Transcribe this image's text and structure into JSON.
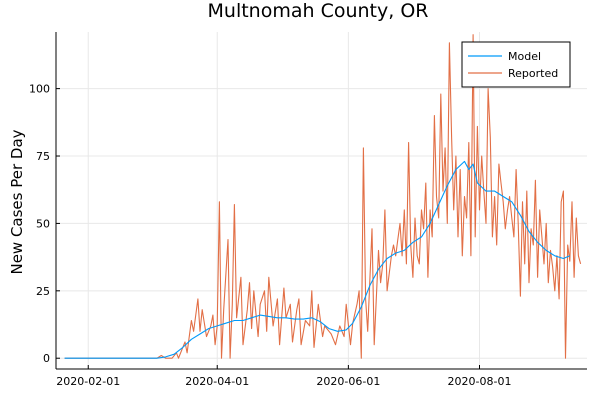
{
  "chart_data": {
    "type": "line",
    "title": "Multnomah County, OR",
    "xlabel": "",
    "ylabel": "New Cases Per Day",
    "x_ticks": [
      "2020-02-01",
      "2020-04-01",
      "2020-06-01",
      "2020-08-01"
    ],
    "y_ticks": [
      0,
      25,
      50,
      75,
      100
    ],
    "xlim": [
      "2020-01-17",
      "2020-09-20"
    ],
    "ylim": [
      -4,
      121
    ],
    "grid": true,
    "legend_position": "top-right",
    "series": [
      {
        "name": "Model",
        "color": "#009AFA",
        "points": [
          [
            "2020-01-21",
            0
          ],
          [
            "2020-03-04",
            0
          ],
          [
            "2020-03-08",
            0.5
          ],
          [
            "2020-03-12",
            1.5
          ],
          [
            "2020-03-16",
            4
          ],
          [
            "2020-03-20",
            7
          ],
          [
            "2020-03-24",
            9
          ],
          [
            "2020-03-28",
            11
          ],
          [
            "2020-04-01",
            12
          ],
          [
            "2020-04-05",
            13
          ],
          [
            "2020-04-09",
            14
          ],
          [
            "2020-04-13",
            14
          ],
          [
            "2020-04-17",
            15
          ],
          [
            "2020-04-21",
            16
          ],
          [
            "2020-04-25",
            15.5
          ],
          [
            "2020-04-29",
            15
          ],
          [
            "2020-05-03",
            15
          ],
          [
            "2020-05-07",
            14.5
          ],
          [
            "2020-05-11",
            14.5
          ],
          [
            "2020-05-15",
            15
          ],
          [
            "2020-05-19",
            13.5
          ],
          [
            "2020-05-23",
            11
          ],
          [
            "2020-05-27",
            10
          ],
          [
            "2020-05-31",
            10.5
          ],
          [
            "2020-06-03",
            13
          ],
          [
            "2020-06-07",
            19
          ],
          [
            "2020-06-11",
            27
          ],
          [
            "2020-06-15",
            33
          ],
          [
            "2020-06-19",
            37
          ],
          [
            "2020-06-23",
            39
          ],
          [
            "2020-06-27",
            40
          ],
          [
            "2020-07-01",
            43
          ],
          [
            "2020-07-05",
            45
          ],
          [
            "2020-07-09",
            50
          ],
          [
            "2020-07-13",
            57
          ],
          [
            "2020-07-17",
            64
          ],
          [
            "2020-07-21",
            70
          ],
          [
            "2020-07-25",
            73
          ],
          [
            "2020-07-27",
            70
          ],
          [
            "2020-07-29",
            72
          ],
          [
            "2020-07-31",
            65
          ],
          [
            "2020-08-04",
            62
          ],
          [
            "2020-08-08",
            62
          ],
          [
            "2020-08-12",
            60
          ],
          [
            "2020-08-16",
            58
          ],
          [
            "2020-08-20",
            53
          ],
          [
            "2020-08-24",
            47
          ],
          [
            "2020-08-28",
            43
          ],
          [
            "2020-09-01",
            40
          ],
          [
            "2020-09-05",
            38
          ],
          [
            "2020-09-09",
            37
          ],
          [
            "2020-09-12",
            38
          ]
        ]
      },
      {
        "name": "Reported",
        "color": "#E26F46",
        "points": [
          [
            "2020-01-21",
            0
          ],
          [
            "2020-03-04",
            0
          ],
          [
            "2020-03-06",
            1
          ],
          [
            "2020-03-08",
            0
          ],
          [
            "2020-03-11",
            0
          ],
          [
            "2020-03-13",
            2
          ],
          [
            "2020-03-14",
            0
          ],
          [
            "2020-03-16",
            4
          ],
          [
            "2020-03-17",
            6
          ],
          [
            "2020-03-18",
            2
          ],
          [
            "2020-03-20",
            14
          ],
          [
            "2020-03-21",
            10
          ],
          [
            "2020-03-23",
            22
          ],
          [
            "2020-03-24",
            10
          ],
          [
            "2020-03-25",
            18
          ],
          [
            "2020-03-27",
            8
          ],
          [
            "2020-03-29",
            12
          ],
          [
            "2020-03-30",
            16
          ],
          [
            "2020-03-31",
            5
          ],
          [
            "2020-04-01",
            12
          ],
          [
            "2020-04-02",
            58
          ],
          [
            "2020-04-03",
            0
          ],
          [
            "2020-04-04",
            18
          ],
          [
            "2020-04-06",
            44
          ],
          [
            "2020-04-07",
            0
          ],
          [
            "2020-04-08",
            20
          ],
          [
            "2020-04-09",
            57
          ],
          [
            "2020-04-10",
            15
          ],
          [
            "2020-04-12",
            30
          ],
          [
            "2020-04-13",
            5
          ],
          [
            "2020-04-15",
            18
          ],
          [
            "2020-04-16",
            28
          ],
          [
            "2020-04-17",
            11
          ],
          [
            "2020-04-18",
            25
          ],
          [
            "2020-04-20",
            8
          ],
          [
            "2020-04-21",
            20
          ],
          [
            "2020-04-23",
            25
          ],
          [
            "2020-04-24",
            10
          ],
          [
            "2020-04-25",
            30
          ],
          [
            "2020-04-27",
            12
          ],
          [
            "2020-04-29",
            22
          ],
          [
            "2020-04-30",
            5
          ],
          [
            "2020-05-02",
            26
          ],
          [
            "2020-05-03",
            15
          ],
          [
            "2020-05-05",
            20
          ],
          [
            "2020-05-06",
            6
          ],
          [
            "2020-05-08",
            18
          ],
          [
            "2020-05-09",
            22
          ],
          [
            "2020-05-10",
            5
          ],
          [
            "2020-05-12",
            14
          ],
          [
            "2020-05-14",
            12
          ],
          [
            "2020-05-15",
            25
          ],
          [
            "2020-05-16",
            4
          ],
          [
            "2020-05-18",
            20
          ],
          [
            "2020-05-20",
            8
          ],
          [
            "2020-05-21",
            12
          ],
          [
            "2020-05-23",
            10
          ],
          [
            "2020-05-24",
            9
          ],
          [
            "2020-05-26",
            5
          ],
          [
            "2020-05-28",
            12
          ],
          [
            "2020-05-30",
            8
          ],
          [
            "2020-05-31",
            20
          ],
          [
            "2020-06-02",
            5
          ],
          [
            "2020-06-03",
            13
          ],
          [
            "2020-06-05",
            20
          ],
          [
            "2020-06-06",
            25
          ],
          [
            "2020-06-07",
            0
          ],
          [
            "2020-06-08",
            78
          ],
          [
            "2020-06-09",
            22
          ],
          [
            "2020-06-10",
            10
          ],
          [
            "2020-06-12",
            48
          ],
          [
            "2020-06-13",
            5
          ],
          [
            "2020-06-15",
            40
          ],
          [
            "2020-06-16",
            28
          ],
          [
            "2020-06-17",
            35
          ],
          [
            "2020-06-18",
            55
          ],
          [
            "2020-06-19",
            25
          ],
          [
            "2020-06-21",
            38
          ],
          [
            "2020-06-22",
            42
          ],
          [
            "2020-06-23",
            38
          ],
          [
            "2020-06-24",
            44
          ],
          [
            "2020-06-25",
            50
          ],
          [
            "2020-06-26",
            38
          ],
          [
            "2020-06-27",
            55
          ],
          [
            "2020-06-28",
            35
          ],
          [
            "2020-06-29",
            80
          ],
          [
            "2020-06-30",
            42
          ],
          [
            "2020-07-01",
            30
          ],
          [
            "2020-07-02",
            52
          ],
          [
            "2020-07-03",
            38
          ],
          [
            "2020-07-04",
            35
          ],
          [
            "2020-07-05",
            55
          ],
          [
            "2020-07-06",
            48
          ],
          [
            "2020-07-07",
            65
          ],
          [
            "2020-07-08",
            30
          ],
          [
            "2020-07-09",
            55
          ],
          [
            "2020-07-10",
            45
          ],
          [
            "2020-07-11",
            90
          ],
          [
            "2020-07-12",
            60
          ],
          [
            "2020-07-13",
            52
          ],
          [
            "2020-07-14",
            98
          ],
          [
            "2020-07-15",
            62
          ],
          [
            "2020-07-16",
            78
          ],
          [
            "2020-07-17",
            50
          ],
          [
            "2020-07-18",
            117
          ],
          [
            "2020-07-19",
            82
          ],
          [
            "2020-07-20",
            55
          ],
          [
            "2020-07-21",
            75
          ],
          [
            "2020-07-22",
            45
          ],
          [
            "2020-07-23",
            70
          ],
          [
            "2020-07-24",
            38
          ],
          [
            "2020-07-25",
            60
          ],
          [
            "2020-07-26",
            52
          ],
          [
            "2020-07-27",
            80
          ],
          [
            "2020-07-28",
            38
          ],
          [
            "2020-07-29",
            120
          ],
          [
            "2020-07-30",
            45
          ],
          [
            "2020-07-31",
            86
          ],
          [
            "2020-08-01",
            55
          ],
          [
            "2020-08-02",
            75
          ],
          [
            "2020-08-03",
            62
          ],
          [
            "2020-08-04",
            50
          ],
          [
            "2020-08-05",
            100
          ],
          [
            "2020-08-06",
            82
          ],
          [
            "2020-08-07",
            45
          ],
          [
            "2020-08-08",
            60
          ],
          [
            "2020-08-09",
            42
          ],
          [
            "2020-08-10",
            72
          ],
          [
            "2020-08-11",
            65
          ],
          [
            "2020-08-12",
            58
          ],
          [
            "2020-08-13",
            48
          ],
          [
            "2020-08-14",
            55
          ],
          [
            "2020-08-15",
            60
          ],
          [
            "2020-08-16",
            52
          ],
          [
            "2020-08-17",
            45
          ],
          [
            "2020-08-18",
            70
          ],
          [
            "2020-08-19",
            50
          ],
          [
            "2020-08-20",
            23
          ],
          [
            "2020-08-21",
            58
          ],
          [
            "2020-08-22",
            35
          ],
          [
            "2020-08-23",
            62
          ],
          [
            "2020-08-24",
            28
          ],
          [
            "2020-08-25",
            48
          ],
          [
            "2020-08-26",
            42
          ],
          [
            "2020-08-27",
            66
          ],
          [
            "2020-08-28",
            30
          ],
          [
            "2020-08-29",
            55
          ],
          [
            "2020-08-30",
            45
          ],
          [
            "2020-08-31",
            35
          ],
          [
            "2020-09-01",
            50
          ],
          [
            "2020-09-02",
            28
          ],
          [
            "2020-09-03",
            40
          ],
          [
            "2020-09-04",
            34
          ],
          [
            "2020-09-05",
            25
          ],
          [
            "2020-09-06",
            38
          ],
          [
            "2020-09-07",
            22
          ],
          [
            "2020-09-08",
            58
          ],
          [
            "2020-09-09",
            62
          ],
          [
            "2020-09-10",
            0
          ],
          [
            "2020-09-11",
            42
          ],
          [
            "2020-09-12",
            36
          ],
          [
            "2020-09-13",
            58
          ],
          [
            "2020-09-14",
            30
          ],
          [
            "2020-09-15",
            52
          ],
          [
            "2020-09-16",
            38
          ],
          [
            "2020-09-17",
            35
          ]
        ]
      }
    ]
  }
}
